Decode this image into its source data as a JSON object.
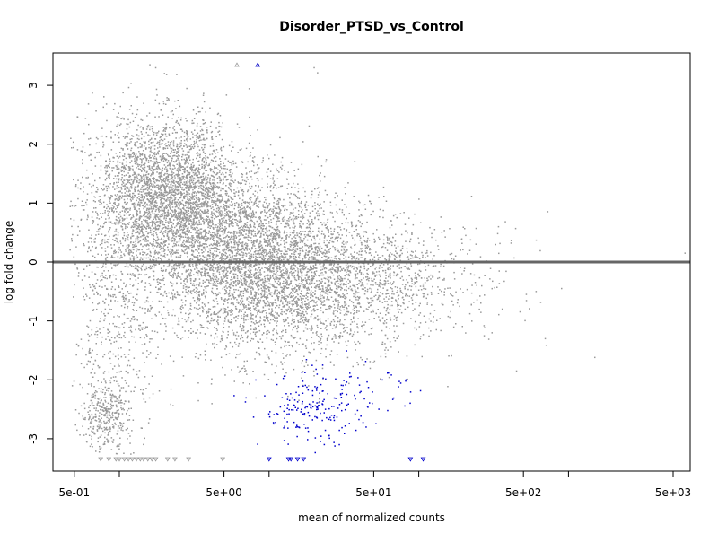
{
  "chart_data": {
    "type": "scatter",
    "title": "Disorder_PTSD_vs_Control",
    "xlabel": "mean of normalized counts",
    "ylabel": "log fold change",
    "x_scale": "log10",
    "xlim": [
      0.36,
      6500
    ],
    "ylim": [
      -3.55,
      3.55
    ],
    "x_ticks": [
      {
        "value": 0.5,
        "label": "5e-01"
      },
      {
        "value": 5,
        "label": "5e+00"
      },
      {
        "value": 50,
        "label": "5e+01"
      },
      {
        "value": 500,
        "label": "5e+02"
      },
      {
        "value": 5000,
        "label": "5e+03"
      }
    ],
    "x_minor_ticks": [
      1,
      10,
      100,
      1000
    ],
    "y_ticks": [
      {
        "value": 3,
        "label": "3"
      },
      {
        "value": 2,
        "label": "2"
      },
      {
        "value": 1,
        "label": "1"
      },
      {
        "value": 0,
        "label": "0"
      },
      {
        "value": -1,
        "label": "-1"
      },
      {
        "value": -2,
        "label": "-2"
      },
      {
        "value": -3,
        "label": "-3"
      }
    ],
    "reference_line": {
      "y": 0,
      "color": "#666666"
    },
    "grid": false,
    "colors": {
      "not_significant": "#999999",
      "significant": "#0000cc"
    },
    "series": [
      {
        "clusters": [
          {
            "x_center": 1.5,
            "y_center": 1.0,
            "x_spread": 0.24,
            "y_spread": 0.75,
            "count": 1800
          },
          {
            "x_center": 2.5,
            "y_center": 1.2,
            "x_spread": 0.2,
            "y_spread": 0.6,
            "count": 1500
          },
          {
            "x_center": 1.0,
            "y_center": -1.0,
            "x_spread": 0.15,
            "y_spread": 1.0,
            "count": 500
          },
          {
            "x_center": 0.8,
            "y_center": -2.6,
            "x_spread": 0.08,
            "y_spread": 0.3,
            "count": 350
          },
          {
            "x_center": 4.0,
            "y_center": 0.3,
            "x_spread": 0.22,
            "y_spread": 0.8,
            "count": 1400
          },
          {
            "x_center": 8.0,
            "y_center": 0.0,
            "x_spread": 0.22,
            "y_spread": 0.75,
            "count": 1600
          },
          {
            "x_center": 15.0,
            "y_center": -0.2,
            "x_spread": 0.25,
            "y_spread": 0.7,
            "count": 1300
          },
          {
            "x_center": 30.0,
            "y_center": -0.3,
            "x_spread": 0.28,
            "y_spread": 0.6,
            "count": 900
          },
          {
            "x_center": 80.0,
            "y_center": -0.3,
            "x_spread": 0.3,
            "y_spread": 0.5,
            "count": 450
          },
          {
            "x_center": 250.0,
            "y_center": -0.2,
            "x_spread": 0.25,
            "y_spread": 0.5,
            "count": 60
          }
        ],
        "extra_points": [
          {
            "x": 1.6,
            "y": 3.35
          },
          {
            "x": 1.75,
            "y": 3.3
          },
          {
            "x": 2.0,
            "y": 3.2
          },
          {
            "x": 8.5,
            "y": 3.35
          },
          {
            "x": 20.0,
            "y": 3.3
          },
          {
            "x": 6000.0,
            "y": 0.15
          },
          {
            "x": 1500.0,
            "y": -1.62
          },
          {
            "x": 700.0,
            "y": -1.3
          },
          {
            "x": 450.0,
            "y": -1.85
          },
          {
            "x": 900.0,
            "y": -0.45
          }
        ],
        "clipped_bottom": [
          {
            "x": 0.75,
            "y": -3.35
          },
          {
            "x": 0.85,
            "y": -3.35
          },
          {
            "x": 0.95,
            "y": -3.35
          },
          {
            "x": 1.0,
            "y": -3.35
          },
          {
            "x": 1.08,
            "y": -3.35
          },
          {
            "x": 1.15,
            "y": -3.35
          },
          {
            "x": 1.22,
            "y": -3.35
          },
          {
            "x": 1.3,
            "y": -3.35
          },
          {
            "x": 1.38,
            "y": -3.35
          },
          {
            "x": 1.45,
            "y": -3.35
          },
          {
            "x": 1.55,
            "y": -3.35
          },
          {
            "x": 1.65,
            "y": -3.35
          },
          {
            "x": 1.75,
            "y": -3.35
          },
          {
            "x": 2.1,
            "y": -3.35
          },
          {
            "x": 2.35,
            "y": -3.35
          },
          {
            "x": 2.9,
            "y": -3.35
          },
          {
            "x": 4.9,
            "y": -3.35
          }
        ],
        "clipped_top": [
          {
            "x": 6.1,
            "y": 3.35
          }
        ]
      },
      {
        "clusters": [
          {
            "x_center": 20.0,
            "y_center": -2.5,
            "x_spread": 0.18,
            "y_spread": 0.3,
            "count": 200
          },
          {
            "x_center": 60.0,
            "y_center": -2.2,
            "x_spread": 0.15,
            "y_spread": 0.3,
            "count": 25
          }
        ],
        "clipped_bottom": [
          {
            "x": 10.0,
            "y": -3.35
          },
          {
            "x": 13.5,
            "y": -3.35
          },
          {
            "x": 14.0,
            "y": -3.35
          },
          {
            "x": 15.5,
            "y": -3.35
          },
          {
            "x": 17.0,
            "y": -3.35
          },
          {
            "x": 88.0,
            "y": -3.35
          },
          {
            "x": 107.0,
            "y": -3.35
          }
        ],
        "clipped_top": [
          {
            "x": 8.4,
            "y": 3.35
          }
        ]
      }
    ]
  }
}
